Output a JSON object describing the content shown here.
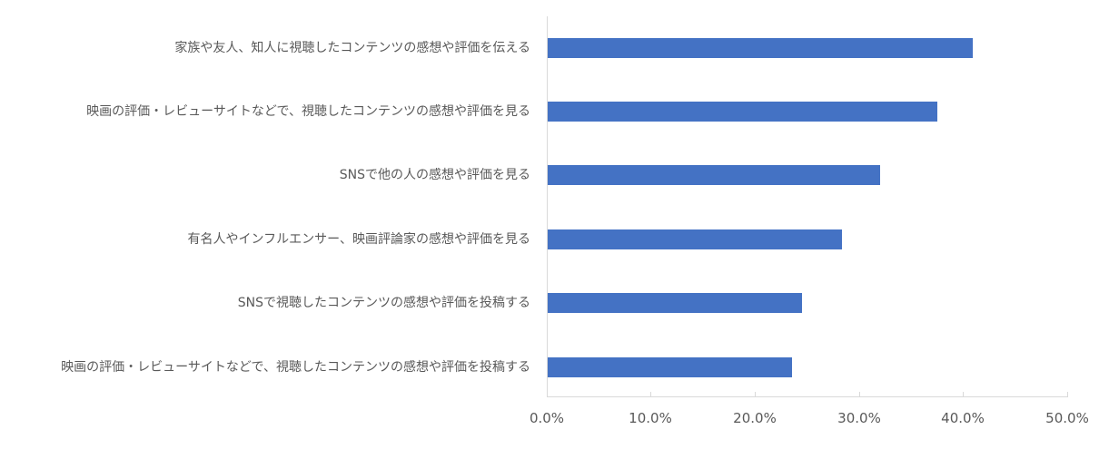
{
  "chart_data": {
    "type": "bar",
    "orientation": "horizontal",
    "title": "",
    "xlabel": "",
    "ylabel": "",
    "categories": [
      "家族や友人、知人に視聴したコンテンツの感想や評価を伝える",
      "映画の評価・レビューサイトなどで、視聴したコンテンツの感想や評価を見る",
      "SNSで他の人の感想や評価を見る",
      "有名人やインフルエンサー、映画評論家の感想や評価を見る",
      "SNSで視聴したコンテンツの感想や評価を投稿する",
      "映画の評価・レビューサイトなどで、視聴したコンテンツの感想や評価を投稿する"
    ],
    "values": [
      40.8,
      37.4,
      31.9,
      28.3,
      24.4,
      23.5
    ],
    "unit": "%",
    "xlim": [
      0,
      50
    ],
    "x_ticks": [
      "0.0%",
      "10.0%",
      "20.0%",
      "30.0%",
      "40.0%",
      "50.0%"
    ],
    "grid": false,
    "legend": null,
    "bar_color": "#4472c4"
  }
}
